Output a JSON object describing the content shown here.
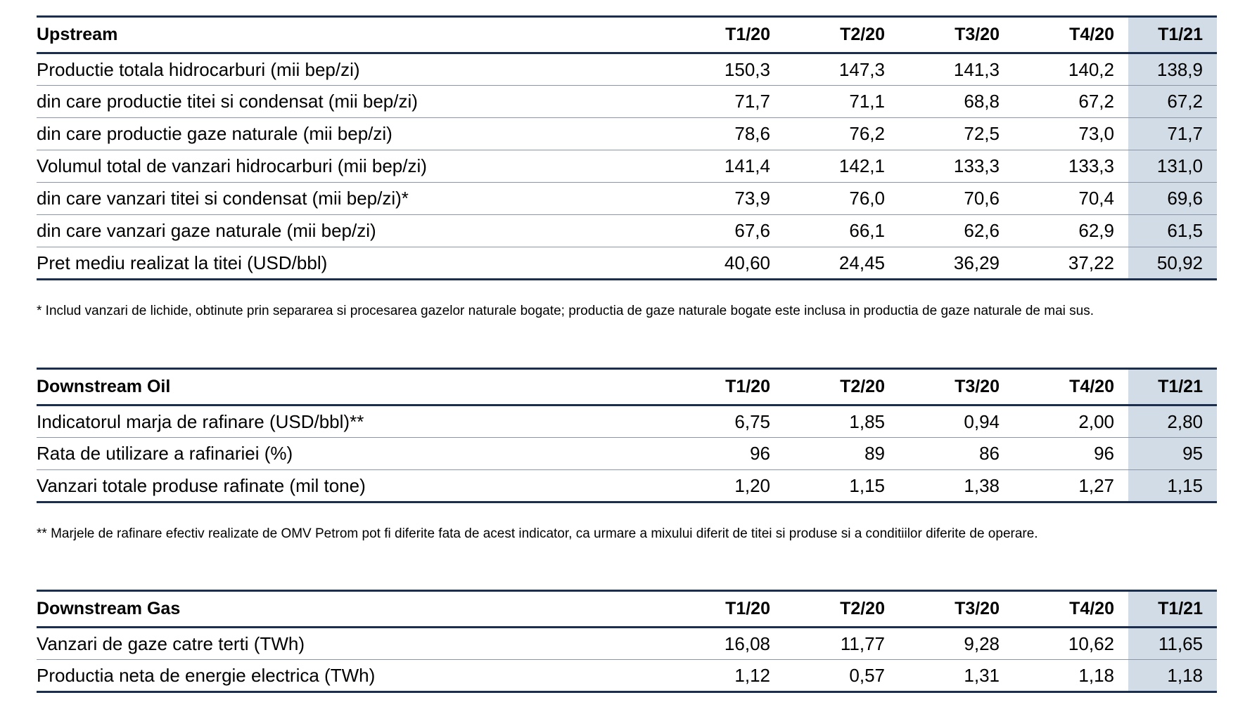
{
  "sections": [
    {
      "title": "Upstream",
      "columns": [
        "T1/20",
        "T2/20",
        "T3/20",
        "T4/20",
        "T1/21"
      ],
      "rows": [
        {
          "label": "Productie totala hidrocarburi (mii bep/zi)",
          "values": [
            "150,3",
            "147,3",
            "141,3",
            "140,2",
            "138,9"
          ]
        },
        {
          "label": "din care productie titei si condensat (mii bep/zi)",
          "values": [
            "71,7",
            "71,1",
            "68,8",
            "67,2",
            "67,2"
          ]
        },
        {
          "label": "din care productie gaze naturale (mii bep/zi)",
          "values": [
            "78,6",
            "76,2",
            "72,5",
            "73,0",
            "71,7"
          ]
        },
        {
          "label": "Volumul total de vanzari hidrocarburi (mii bep/zi)",
          "values": [
            "141,4",
            "142,1",
            "133,3",
            "133,3",
            "131,0"
          ]
        },
        {
          "label": "din care vanzari titei si condensat (mii bep/zi)*",
          "values": [
            "73,9",
            "76,0",
            "70,6",
            "70,4",
            "69,6"
          ]
        },
        {
          "label": "din care vanzari gaze naturale (mii bep/zi)",
          "values": [
            "67,6",
            "66,1",
            "62,6",
            "62,9",
            "61,5"
          ]
        },
        {
          "label": "Pret mediu realizat la titei (USD/bbl)",
          "values": [
            "40,60",
            "24,45",
            "36,29",
            "37,22",
            "50,92"
          ]
        }
      ],
      "footnote": "* Includ vanzari de lichide, obtinute prin separarea si procesarea gazelor naturale bogate; productia de gaze naturale bogate este inclusa in productia de gaze naturale de mai sus."
    },
    {
      "title": "Downstream Oil",
      "columns": [
        "T1/20",
        "T2/20",
        "T3/20",
        "T4/20",
        "T1/21"
      ],
      "rows": [
        {
          "label": "Indicatorul marja de rafinare (USD/bbl)**",
          "values": [
            "6,75",
            "1,85",
            "0,94",
            "2,00",
            "2,80"
          ]
        },
        {
          "label": "Rata de utilizare a rafinariei (%)",
          "values": [
            "96",
            "89",
            "86",
            "96",
            "95"
          ]
        },
        {
          "label": "Vanzari totale produse rafinate (mil tone)",
          "values": [
            "1,20",
            "1,15",
            "1,38",
            "1,27",
            "1,15"
          ]
        }
      ],
      "footnote": "** Marjele de rafinare efectiv realizate de OMV Petrom pot fi diferite fata de acest indicator, ca urmare a mixului diferit de titei si produse si a conditiilor diferite de operare."
    },
    {
      "title": "Downstream Gas",
      "columns": [
        "T1/20",
        "T2/20",
        "T3/20",
        "T4/20",
        "T1/21"
      ],
      "rows": [
        {
          "label": "Vanzari de gaze catre terti (TWh)",
          "values": [
            "16,08",
            "11,77",
            "9,28",
            "10,62",
            "11,65"
          ]
        },
        {
          "label": "Productia neta de energie electrica (TWh)",
          "values": [
            "1,12",
            "0,57",
            "1,31",
            "1,18",
            "1,18"
          ]
        }
      ]
    }
  ],
  "colors": {
    "rule": "#1c2e4d",
    "highlight_column": "#d2dce6",
    "row_divider": "#8a96a8"
  }
}
